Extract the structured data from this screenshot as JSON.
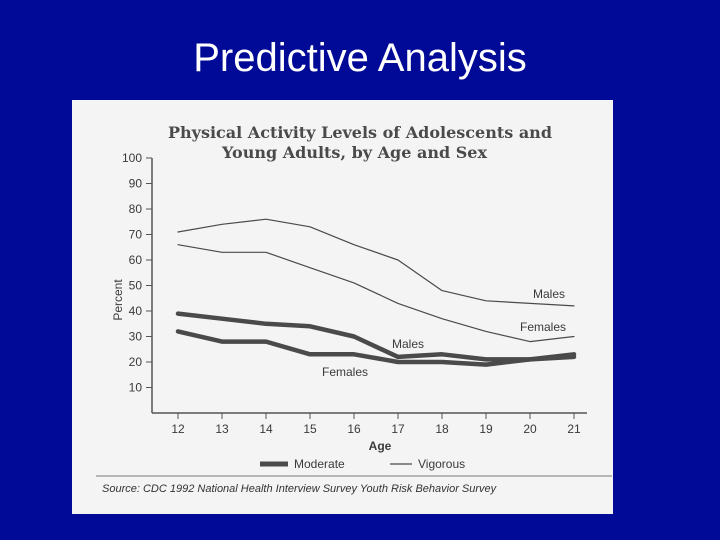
{
  "slide": {
    "title": "Predictive Analysis"
  },
  "chart_data": {
    "type": "line",
    "title_line1": "Physical Activity Levels of Adolescents and",
    "title_line2": "Young Adults, by Age and Sex",
    "xlabel": "Age",
    "ylabel": "Percent",
    "x": [
      12,
      13,
      14,
      15,
      16,
      17,
      18,
      19,
      20,
      21
    ],
    "xlim": [
      12,
      21
    ],
    "ylim": [
      0,
      100
    ],
    "yticks": [
      10,
      20,
      30,
      40,
      50,
      60,
      70,
      80,
      90,
      100
    ],
    "series": [
      {
        "name": "Males",
        "style": "vigorous",
        "values": [
          71,
          74,
          76,
          73,
          66,
          60,
          48,
          44,
          43,
          42
        ]
      },
      {
        "name": "Females",
        "style": "vigorous",
        "values": [
          66,
          63,
          63,
          57,
          51,
          43,
          37,
          32,
          28,
          30
        ]
      },
      {
        "name": "Males",
        "style": "moderate",
        "values": [
          39,
          37,
          35,
          34,
          30,
          22,
          23,
          21,
          21,
          22
        ]
      },
      {
        "name": "Females",
        "style": "moderate",
        "values": [
          32,
          28,
          28,
          23,
          23,
          20,
          20,
          19,
          21,
          23
        ]
      }
    ],
    "legend": {
      "moderate": "Moderate",
      "vigorous": "Vigorous",
      "placement": "bottom"
    },
    "source": "Source: CDC 1992 National Health Interview Survey Youth Risk Behavior Survey",
    "colors": {
      "line": "#4a4a4a",
      "background": "#f4f4f4",
      "slide": "#000a96"
    }
  }
}
